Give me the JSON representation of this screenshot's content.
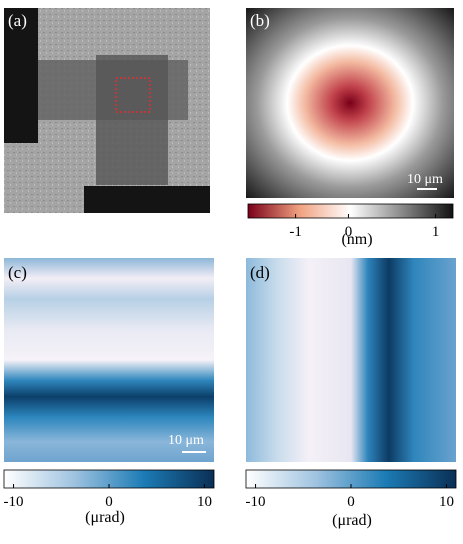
{
  "panels": [
    {
      "label": "(a)"
    },
    {
      "label": "(b)",
      "scalebar": "10 μm"
    },
    {
      "label": "(c)",
      "scalebar": "10 μm"
    },
    {
      "label": "(d)"
    }
  ],
  "colorbars": [
    {
      "lim": [
        -1.9,
        1.2
      ],
      "ticks": [
        -1,
        0,
        1
      ],
      "unit": "(nm)",
      "colors": [
        "#7a0019",
        "#f0a080",
        "#ffffff",
        "#8a8a8a",
        "#111111"
      ]
    },
    {
      "lim": [
        -11,
        11
      ],
      "ticks": [
        -10,
        0,
        10
      ],
      "unit": "(μrad)",
      "colors": [
        "#ffffff",
        "#9fc3e0",
        "#1c7bb5",
        "#0a2f55"
      ]
    },
    {
      "lim": [
        -11,
        11
      ],
      "ticks": [
        -10,
        0,
        10
      ],
      "unit": "(μrad)",
      "colors": [
        "#ffffff",
        "#9fc3e0",
        "#1c7bb5",
        "#0a2f55"
      ]
    }
  ]
}
